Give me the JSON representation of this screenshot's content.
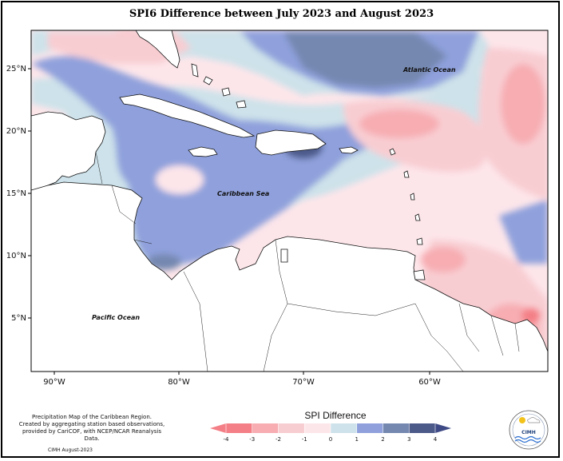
{
  "title": "SPI6 Difference between July 2023 and August 2023",
  "map": {
    "latitude_labels": [
      "25°N",
      "20°N",
      "15°N",
      "10°N",
      "5°N"
    ],
    "longitude_labels": [
      "90°W",
      "80°W",
      "70°W",
      "60°W"
    ],
    "ocean_labels": {
      "atlantic": "Atlantic Ocean",
      "caribbean": "Caribbean Sea",
      "pacific": "Pacific Ocean"
    }
  },
  "legend": {
    "title": "SPI Difference",
    "ticks": [
      "-4",
      "-3",
      "-2",
      "-1",
      "0",
      "1",
      "2",
      "3",
      "4"
    ],
    "colors": [
      "#f47f86",
      "#f7adb2",
      "#f8cdd2",
      "#fde6ea",
      "#cde2ea",
      "#8fa0dc",
      "#7488b0",
      "#4c5a8a"
    ],
    "end_low_color": "#f47f86",
    "end_high_color": "#3e4a86"
  },
  "footer": {
    "note_lines": [
      "Precipitation Map of the Caribbean Region.",
      "Created by aggregating station based observations,",
      "provided by CariCOF, with NCEP/NCAR Reanalysis Data."
    ],
    "date": "CIMH August-2023"
  },
  "logo": {
    "text": "CIMH",
    "icon": "cimh-logo-icon"
  }
}
